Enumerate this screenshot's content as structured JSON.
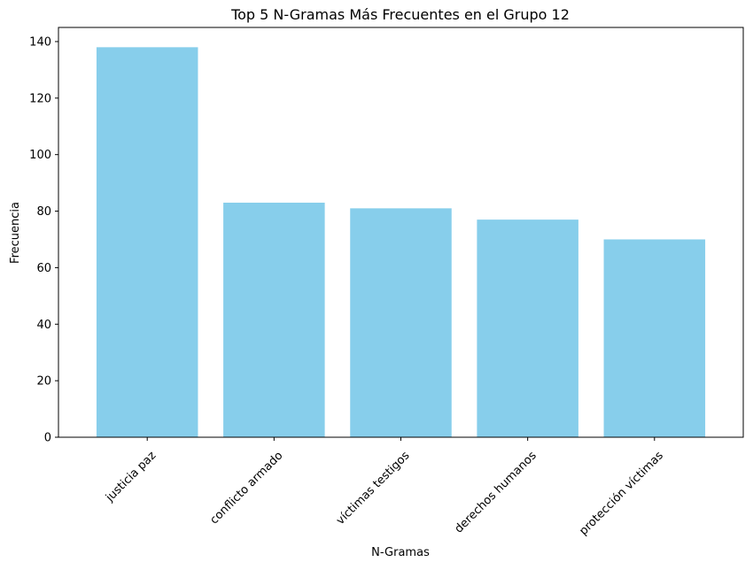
{
  "chart_data": {
    "type": "bar",
    "title": "Top 5 N-Gramas Más Frecuentes en el Grupo 12",
    "xlabel": "N-Gramas",
    "ylabel": "Frecuencia",
    "categories": [
      "justicia paz",
      "conflicto armado",
      "víctimas testigos",
      "derechos humanos",
      "protección víctimas"
    ],
    "values": [
      138,
      83,
      81,
      77,
      70
    ],
    "ylim": [
      0,
      145
    ],
    "yticks": [
      0,
      20,
      40,
      60,
      80,
      100,
      120,
      140
    ],
    "grid": false,
    "legend": "none",
    "bar_color": "#87ceeb",
    "x_tick_rotation": 45
  }
}
